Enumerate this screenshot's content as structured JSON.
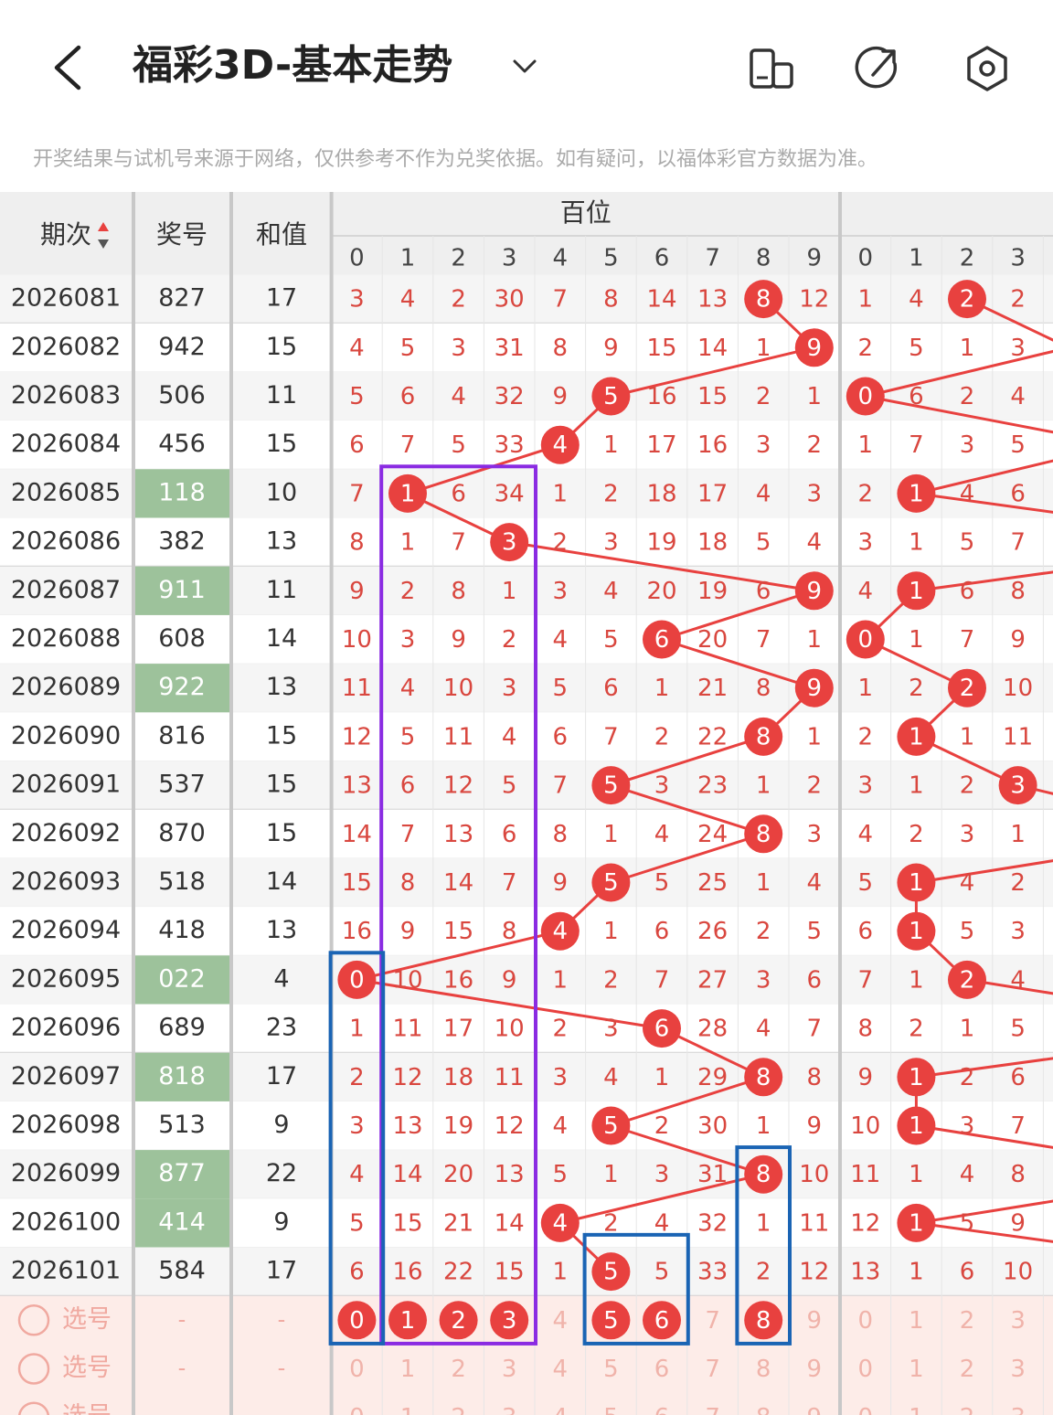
{
  "header": {
    "title": "福彩3D-基本走势"
  },
  "notice": "开奖结果与试机号来源于网络，仅供参考不作为兑奖依据。如有疑问，以福体彩官方数据为准。",
  "table": {
    "columns": [
      "期次",
      "奖号",
      "和值"
    ],
    "group": "百位",
    "digits": [
      0,
      1,
      2,
      3,
      4,
      5,
      6,
      7,
      8,
      9
    ],
    "tens_digits": [
      0,
      1,
      2,
      3
    ],
    "rows": [
      {
        "period": "2026081",
        "number": "827",
        "sum": 17,
        "hundreds": [
          3,
          4,
          2,
          30,
          7,
          8,
          14,
          13,
          8,
          12
        ],
        "tens": [
          1,
          4,
          2,
          2
        ]
      },
      {
        "period": "2026082",
        "number": "942",
        "sum": 15,
        "hundreds": [
          4,
          5,
          3,
          31,
          8,
          9,
          15,
          14,
          1,
          9
        ],
        "tens": [
          2,
          5,
          1,
          3
        ]
      },
      {
        "period": "2026083",
        "number": "506",
        "sum": 11,
        "hundreds": [
          5,
          6,
          4,
          32,
          9,
          5,
          16,
          15,
          2,
          1
        ],
        "tens": [
          0,
          6,
          2,
          4
        ]
      },
      {
        "period": "2026084",
        "number": "456",
        "sum": 15,
        "hundreds": [
          6,
          7,
          5,
          33,
          4,
          1,
          17,
          16,
          3,
          2
        ],
        "tens": [
          1,
          7,
          3,
          5
        ]
      },
      {
        "period": "2026085",
        "number": "118",
        "sum": 10,
        "hundreds": [
          7,
          1,
          6,
          34,
          1,
          2,
          18,
          17,
          4,
          3
        ],
        "tens": [
          2,
          1,
          4,
          6
        ]
      },
      {
        "period": "2026086",
        "number": "382",
        "sum": 13,
        "hundreds": [
          8,
          1,
          7,
          3,
          2,
          3,
          19,
          18,
          5,
          4
        ],
        "tens": [
          3,
          1,
          5,
          7
        ]
      },
      {
        "period": "2026087",
        "number": "911",
        "sum": 11,
        "hundreds": [
          9,
          2,
          8,
          1,
          3,
          4,
          20,
          19,
          6,
          9
        ],
        "tens": [
          4,
          1,
          6,
          8
        ]
      },
      {
        "period": "2026088",
        "number": "608",
        "sum": 14,
        "hundreds": [
          10,
          3,
          9,
          2,
          4,
          5,
          6,
          20,
          7,
          1
        ],
        "tens": [
          0,
          1,
          7,
          9
        ]
      },
      {
        "period": "2026089",
        "number": "922",
        "sum": 13,
        "hundreds": [
          11,
          4,
          10,
          3,
          5,
          6,
          1,
          21,
          8,
          9
        ],
        "tens": [
          1,
          2,
          2,
          10
        ]
      },
      {
        "period": "2026090",
        "number": "816",
        "sum": 15,
        "hundreds": [
          12,
          5,
          11,
          4,
          6,
          7,
          2,
          22,
          8,
          1
        ],
        "tens": [
          2,
          1,
          1,
          11
        ]
      },
      {
        "period": "2026091",
        "number": "537",
        "sum": 15,
        "hundreds": [
          13,
          6,
          12,
          5,
          7,
          5,
          3,
          23,
          1,
          2
        ],
        "tens": [
          3,
          1,
          2,
          3
        ]
      },
      {
        "period": "2026092",
        "number": "870",
        "sum": 15,
        "hundreds": [
          14,
          7,
          13,
          6,
          8,
          1,
          4,
          24,
          8,
          3
        ],
        "tens": [
          4,
          2,
          3,
          1
        ]
      },
      {
        "period": "2026093",
        "number": "518",
        "sum": 14,
        "hundreds": [
          15,
          8,
          14,
          7,
          9,
          5,
          5,
          25,
          1,
          4
        ],
        "tens": [
          5,
          1,
          4,
          2
        ]
      },
      {
        "period": "2026094",
        "number": "418",
        "sum": 13,
        "hundreds": [
          16,
          9,
          15,
          8,
          4,
          1,
          6,
          26,
          2,
          5
        ],
        "tens": [
          6,
          1,
          5,
          3
        ]
      },
      {
        "period": "2026095",
        "number": "022",
        "sum": 4,
        "hundreds": [
          0,
          10,
          16,
          9,
          1,
          2,
          7,
          27,
          3,
          6
        ],
        "tens": [
          7,
          1,
          2,
          4
        ]
      },
      {
        "period": "2026096",
        "number": "689",
        "sum": 23,
        "hundreds": [
          1,
          11,
          17,
          10,
          2,
          3,
          6,
          28,
          4,
          7
        ],
        "tens": [
          8,
          2,
          1,
          5
        ]
      },
      {
        "period": "2026097",
        "number": "818",
        "sum": 17,
        "hundreds": [
          2,
          12,
          18,
          11,
          3,
          4,
          1,
          29,
          8,
          8
        ],
        "tens": [
          9,
          1,
          2,
          6
        ]
      },
      {
        "period": "2026098",
        "number": "513",
        "sum": 9,
        "hundreds": [
          3,
          13,
          19,
          12,
          4,
          5,
          2,
          30,
          1,
          9
        ],
        "tens": [
          10,
          1,
          3,
          7
        ]
      },
      {
        "period": "2026099",
        "number": "877",
        "sum": 22,
        "hundreds": [
          4,
          14,
          20,
          13,
          5,
          1,
          3,
          31,
          8,
          10
        ],
        "tens": [
          11,
          1,
          4,
          8
        ]
      },
      {
        "period": "2026100",
        "number": "414",
        "sum": 9,
        "hundreds": [
          5,
          15,
          21,
          14,
          4,
          2,
          4,
          32,
          1,
          11
        ],
        "tens": [
          12,
          1,
          5,
          9
        ]
      },
      {
        "period": "2026101",
        "number": "584",
        "sum": 17,
        "hundreds": [
          6,
          16,
          22,
          15,
          1,
          5,
          5,
          33,
          2,
          12
        ],
        "tens": [
          13,
          1,
          6,
          10
        ]
      }
    ],
    "select_rows": [
      {
        "label": "选号",
        "number": "-",
        "sum": "-",
        "selected_hundreds": [
          0,
          1,
          2,
          3,
          5,
          6,
          8
        ]
      },
      {
        "label": "选号",
        "number": "-",
        "sum": "-"
      },
      {
        "label": "选号",
        "number": "-",
        "sum": "-"
      }
    ]
  }
}
